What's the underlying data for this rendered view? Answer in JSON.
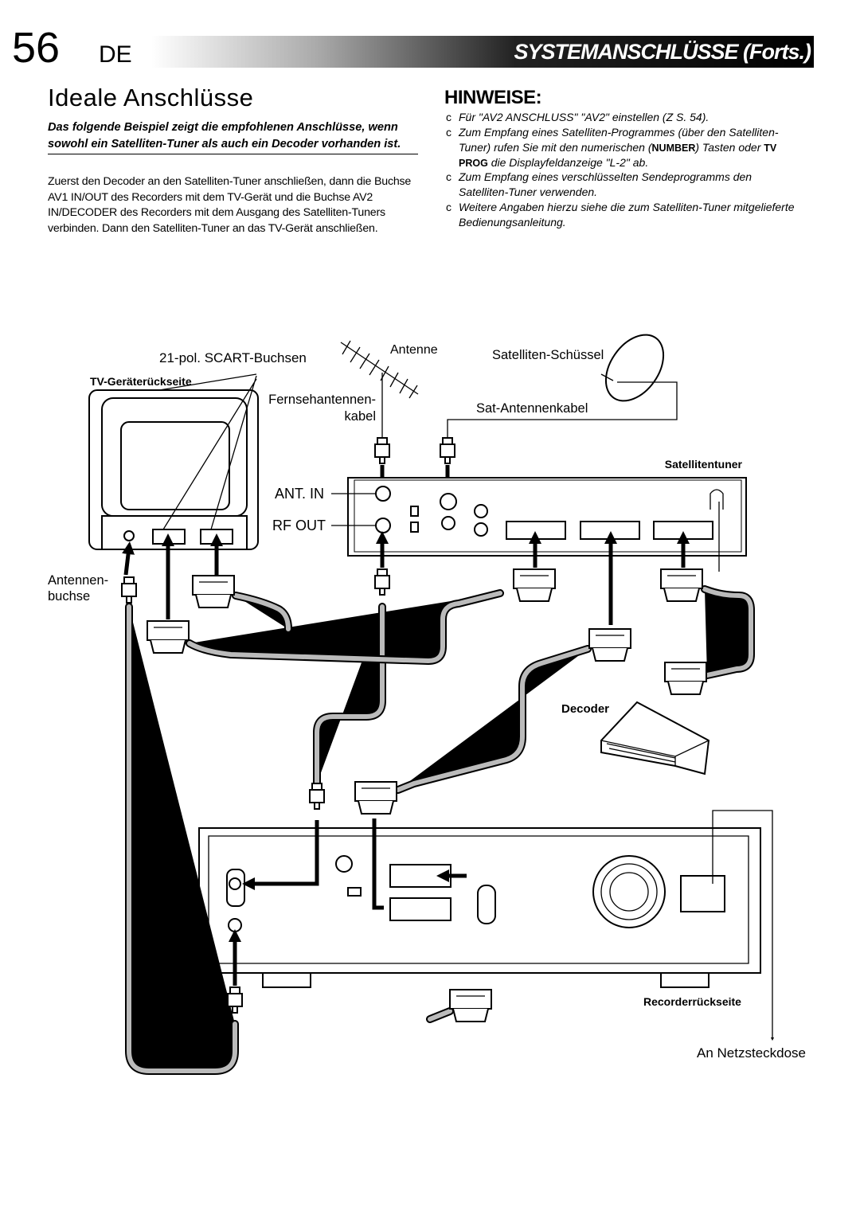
{
  "header": {
    "page_number": "56",
    "language": "DE",
    "section": "SYSTEMANSCHLÜSSE (Forts.)"
  },
  "left": {
    "title": "Ideale Anschlüsse",
    "intro": "Das folgende Beispiel zeigt die empfohlenen Anschlüsse, wenn sowohl ein Satelliten-Tuner als auch ein Decoder vorhanden ist.",
    "body": "Zuerst den Decoder an den Satelliten-Tuner anschließen, dann die Buchse AV1 IN/OUT des Recorders mit dem TV-Gerät und die Buchse AV2 IN/DECODER des Recorders mit dem Ausgang des Satelliten-Tuners verbinden. Dann den Satelliten-Tuner an das TV-Gerät anschließen."
  },
  "notes": {
    "heading": "HINWEISE:",
    "bullet": "c",
    "items": [
      [
        "Für \"AV2 ANSCHLUSS\" \"AV2\" einstellen (Z  S. 54)."
      ],
      [
        "Zum Empfang eines Satelliten-Programmes (über den Satelliten-Tuner) rufen Sie mit den numerischen (",
        "NUMBER",
        ") Tasten oder ",
        "TV PROG",
        " die Displayfeldanzeige \"L-2\" ab."
      ],
      [
        "Zum Empfang eines verschlüsselten Sendeprogramms den Satelliten-Tuner verwenden."
      ],
      [
        "Weitere Angaben hierzu siehe die zum Satelliten-Tuner mitgelieferte Bedienungsanleitung."
      ]
    ]
  },
  "diagram": {
    "scart": "21-pol. SCART-Buchsen",
    "tv": "TV-Geräterückseite",
    "antenna": "Antenne",
    "dish": "Satelliten-Schüssel",
    "tv_cable": [
      "Fernsehantennen-",
      "kabel"
    ],
    "sat_cable": "Sat-Antennenkabel",
    "tuner": "Satellitentuner",
    "ant_in": "ANT. IN",
    "rf_out": "RF OUT",
    "jack": [
      "Antennen-",
      "buchse"
    ],
    "decoder": "Decoder",
    "recorder": "Recorderrückseite",
    "outlet": "An Netzsteckdose"
  }
}
